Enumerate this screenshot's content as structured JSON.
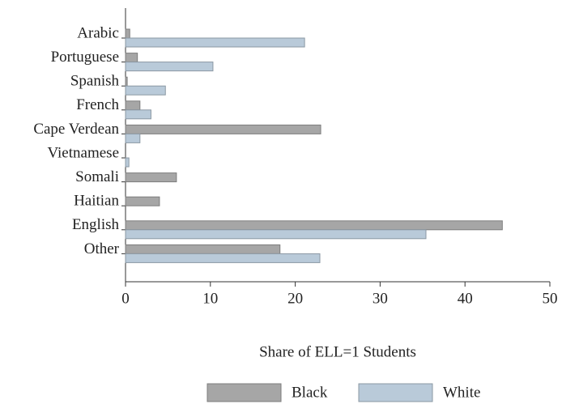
{
  "chart_data": {
    "type": "bar",
    "orientation": "horizontal",
    "x_label": "Share of ELL=1 Students",
    "categories": [
      "Arabic",
      "Portuguese",
      "Spanish",
      "French",
      "Cape Verdean",
      "Vietnamese",
      "Somali",
      "Haitian",
      "English",
      "Other"
    ],
    "series": [
      {
        "name": "Black",
        "color": "#a6a6a6",
        "values": [
          0.5,
          1.4,
          0.2,
          1.7,
          23.0,
          0,
          6.0,
          4.0,
          44.4,
          18.2
        ]
      },
      {
        "name": "White",
        "color": "#b9cad9",
        "values": [
          21.1,
          10.3,
          4.7,
          3.0,
          1.7,
          0.4,
          0,
          0,
          35.4,
          22.9
        ]
      }
    ],
    "xlim": [
      0,
      50
    ],
    "xticks": [
      0,
      10,
      20,
      30,
      40,
      50
    ],
    "grid": false,
    "legend": "bottom"
  }
}
